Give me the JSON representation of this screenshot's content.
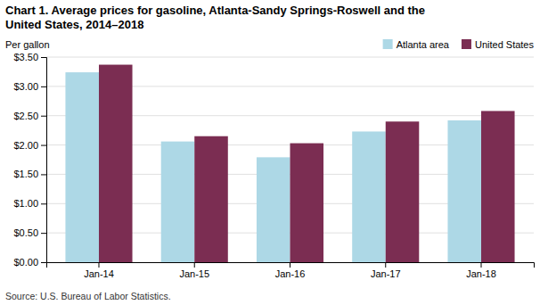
{
  "chart_data": {
    "type": "bar",
    "title": [
      "Chart 1.  Average prices for gasoline, Atlanta-Sandy  Springs-Roswell and the",
      "United States, 2014–2018"
    ],
    "ylabel": "Per gallon",
    "source": "Source:  U.S. Bureau of Labor Statistics.",
    "categories": [
      "Jan-14",
      "Jan-15",
      "Jan-16",
      "Jan-17",
      "Jan-18"
    ],
    "series": [
      {
        "name": "Atlanta area",
        "color": "#ADD8E6",
        "values": [
          3.24,
          2.06,
          1.79,
          2.23,
          2.42
        ]
      },
      {
        "name": "United States",
        "color": "#7B2D52",
        "values": [
          3.37,
          2.15,
          2.03,
          2.4,
          2.58
        ]
      }
    ],
    "ylim": [
      0,
      3.5
    ],
    "yticks": [
      {
        "value": 0.0,
        "label": "$0.00"
      },
      {
        "value": 0.5,
        "label": "$0.50"
      },
      {
        "value": 1.0,
        "label": "$1.00"
      },
      {
        "value": 1.5,
        "label": "$1.50"
      },
      {
        "value": 2.0,
        "label": "$2.00"
      },
      {
        "value": 2.5,
        "label": "$2.50"
      },
      {
        "value": 3.0,
        "label": "$3.00"
      },
      {
        "value": 3.5,
        "label": "$3.50"
      }
    ],
    "grid": true,
    "legend": "upper right"
  }
}
